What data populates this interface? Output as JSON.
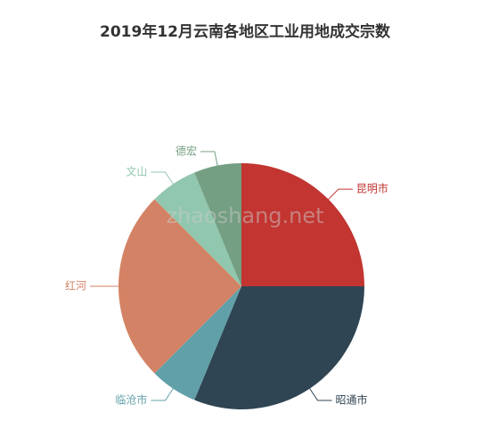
{
  "chart_data": {
    "type": "pie",
    "title": "2019年12月云南各地区工业用地成交宗数",
    "watermark": "zhaoshang.net",
    "categories": [
      "昆明市",
      "昭通市",
      "临沧市",
      "红河",
      "文山",
      "德宏"
    ],
    "values": [
      4,
      5,
      1,
      4,
      1,
      1
    ],
    "colors": [
      "#c23531",
      "#2f4554",
      "#61a0a8",
      "#d48265",
      "#91c7ae",
      "#749f83"
    ]
  }
}
